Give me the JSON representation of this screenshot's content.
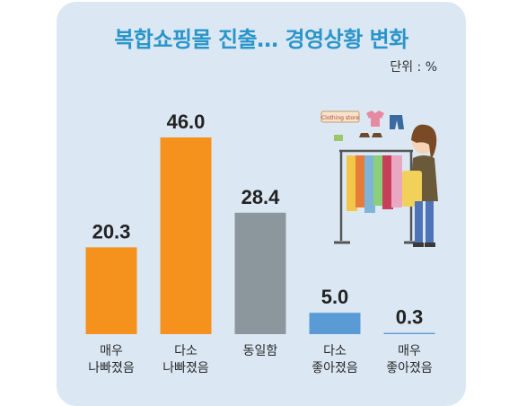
{
  "title": "복합쇼핑몰 진출… 경영상황 변화",
  "unit_label": "단위 : %",
  "illustration": {
    "icon": "shopper-with-clothes-rack-illustration",
    "sign_text": "Clothing store"
  },
  "chart_data": {
    "type": "bar",
    "title": "복합쇼핑몰 진출… 경영상황 변화",
    "unit": "%",
    "categories": [
      [
        "매우",
        "나빠졌음"
      ],
      [
        "다소",
        "나빠졌음"
      ],
      [
        "동일함"
      ],
      [
        "다소",
        "좋아졌음"
      ],
      [
        "매우",
        "좋아졌음"
      ]
    ],
    "values": [
      20.3,
      46.0,
      28.4,
      5.0,
      0.3
    ],
    "value_labels": [
      "20.3",
      "46.0",
      "28.4",
      "5.0",
      "0.3"
    ],
    "colors": [
      "#f5921e",
      "#f5921e",
      "#8c969d",
      "#5b9bd5",
      "#5b9bd5"
    ],
    "ylim": [
      0,
      46.0
    ],
    "grid": false,
    "legend": "none"
  }
}
